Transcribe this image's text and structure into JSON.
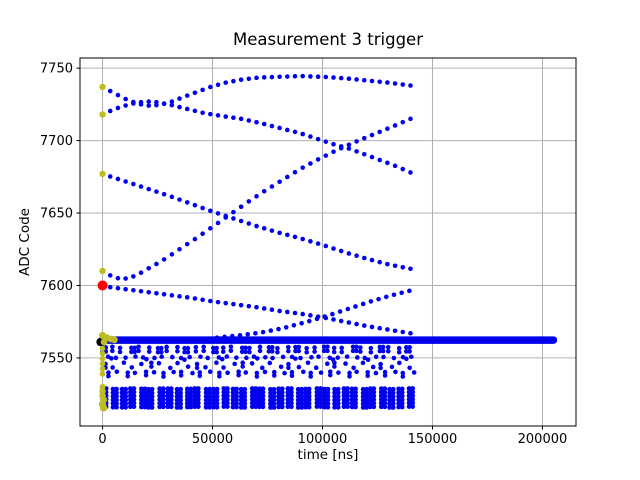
{
  "chart_data": {
    "type": "scatter",
    "title": "Measurement 3 trigger",
    "xlabel": "time [ns]",
    "ylabel": "ADC Code",
    "xlim": [
      -10250,
      215250
    ],
    "ylim": [
      7503,
      7757
    ],
    "xticks": [
      0,
      50000,
      100000,
      150000,
      200000
    ],
    "yticks": [
      7550,
      7600,
      7650,
      7700,
      7750
    ],
    "grid": true,
    "legend": null,
    "colors": {
      "trace": "#0000ee",
      "start_marker": "#bcbd22",
      "trigger_marker": "#ff0000",
      "black_marker": "#000000",
      "grid": "#b0b0b0",
      "spine": "#000000",
      "background": "#ffffff"
    },
    "sample_step_ns": 3500,
    "trace_dot_radius_px": 2.3,
    "traces": [
      {
        "name": "sine-top-rising",
        "points": [
          [
            0,
            7737
          ],
          [
            5000,
            7733
          ],
          [
            10000,
            7729
          ],
          [
            15000,
            7726
          ],
          [
            20000,
            7724
          ],
          [
            25000,
            7724.5
          ],
          [
            30000,
            7726
          ],
          [
            35000,
            7729
          ],
          [
            42000,
            7733
          ],
          [
            49000,
            7737
          ],
          [
            56000,
            7740
          ],
          [
            63000,
            7742
          ],
          [
            71000,
            7743.5
          ],
          [
            80000,
            7744
          ],
          [
            90000,
            7744.5
          ],
          [
            100000,
            7744
          ],
          [
            110000,
            7743
          ],
          [
            120000,
            7741.5
          ],
          [
            130000,
            7740
          ],
          [
            140000,
            7738
          ]
        ]
      },
      {
        "name": "sine-top-falling",
        "points": [
          [
            0,
            7718
          ],
          [
            5000,
            7721.5
          ],
          [
            10000,
            7724
          ],
          [
            15000,
            7726
          ],
          [
            20000,
            7727
          ],
          [
            25000,
            7726.5
          ],
          [
            30000,
            7725
          ],
          [
            38000,
            7722
          ],
          [
            46000,
            7719
          ],
          [
            54000,
            7717
          ],
          [
            63000,
            7715
          ],
          [
            72000,
            7712
          ],
          [
            81000,
            7708.5
          ],
          [
            90000,
            7705
          ],
          [
            98000,
            7701
          ],
          [
            105000,
            7697.5
          ],
          [
            112000,
            7694.5
          ],
          [
            120000,
            7690
          ],
          [
            128000,
            7685.5
          ],
          [
            134000,
            7682
          ],
          [
            140000,
            7678
          ]
        ]
      },
      {
        "name": "sine-mid-falling",
        "points": [
          [
            0,
            7677
          ],
          [
            10000,
            7672
          ],
          [
            20000,
            7667
          ],
          [
            30000,
            7662
          ],
          [
            40000,
            7656.5
          ],
          [
            50000,
            7651
          ],
          [
            60000,
            7646
          ],
          [
            70000,
            7641
          ],
          [
            80000,
            7636.5
          ],
          [
            90000,
            7632.5
          ],
          [
            100000,
            7628
          ],
          [
            110000,
            7623
          ],
          [
            120000,
            7618.5
          ],
          [
            130000,
            7614.5
          ],
          [
            140000,
            7611.5
          ]
        ]
      },
      {
        "name": "sine-mid-rising",
        "points": [
          [
            0,
            7610
          ],
          [
            4000,
            7606.5
          ],
          [
            8000,
            7604.5
          ],
          [
            12000,
            7605
          ],
          [
            16000,
            7607.5
          ],
          [
            20000,
            7611
          ],
          [
            27000,
            7617
          ],
          [
            34000,
            7624
          ],
          [
            42000,
            7632
          ],
          [
            50000,
            7640.5
          ],
          [
            58000,
            7649
          ],
          [
            66000,
            7657.5
          ],
          [
            74000,
            7665.5
          ],
          [
            82000,
            7673
          ],
          [
            90000,
            7680.5
          ],
          [
            98000,
            7687
          ],
          [
            106000,
            7693
          ],
          [
            114000,
            7698.5
          ],
          [
            122000,
            7703.5
          ],
          [
            130000,
            7708.5
          ],
          [
            140000,
            7715
          ]
        ]
      },
      {
        "name": "slow-falling-to-band",
        "points": [
          [
            0,
            7599.5
          ],
          [
            10000,
            7597.5
          ],
          [
            20000,
            7595.5
          ],
          [
            30000,
            7593.5
          ],
          [
            40000,
            7591.5
          ],
          [
            50000,
            7589
          ],
          [
            60000,
            7587
          ],
          [
            70000,
            7585
          ],
          [
            80000,
            7582.5
          ],
          [
            90000,
            7580.5
          ],
          [
            100000,
            7578
          ],
          [
            110000,
            7575
          ],
          [
            120000,
            7572
          ],
          [
            130000,
            7569.5
          ],
          [
            140000,
            7567
          ]
        ]
      },
      {
        "name": "slow-rising-from-band",
        "points": [
          [
            52000,
            7564
          ],
          [
            62000,
            7565.5
          ],
          [
            72000,
            7567.5
          ],
          [
            82000,
            7570.5
          ],
          [
            92000,
            7574.5
          ],
          [
            102000,
            7579
          ],
          [
            112000,
            7584
          ],
          [
            122000,
            7589
          ],
          [
            131000,
            7593
          ],
          [
            140000,
            7596.5
          ]
        ]
      }
    ],
    "flat_band": {
      "y": 7562.3,
      "x_start": 0,
      "x_end": 205000,
      "thickness_px": 7.5
    },
    "bottom_rows": [
      {
        "style": "pair",
        "codes": [
          7557.2,
          7554.4
        ],
        "step": 4200,
        "phase": 0,
        "x_end": 142000
      },
      {
        "style": "single",
        "codes": [
          7550.4
        ],
        "step": 4200,
        "phase": 2100,
        "x_end": 142000
      },
      {
        "style": "mixed",
        "codes": [
          7546.2,
          7543.6
        ],
        "step": 4200,
        "phase": 900,
        "x_end": 142000
      },
      {
        "style": "sparse",
        "codes": [
          7540.0,
          7537.6
        ],
        "step": 4200,
        "phase": 2600,
        "x_end": 142000
      },
      {
        "style": "stack",
        "codes": [
          7528.6,
          7526.1,
          7523.6,
          7521.1,
          7518.6,
          7516.1
        ],
        "step": 4200,
        "phase": 400,
        "x_end": 142000,
        "sub_dx": 1600
      }
    ],
    "start_markers": [
      [
        0,
        7737,
        3.2
      ],
      [
        0,
        7718,
        3.2
      ],
      [
        0,
        7677,
        3.2
      ],
      [
        0,
        7610,
        3.2
      ],
      [
        0,
        7565.5,
        3.6
      ],
      [
        2000,
        7564,
        3.4
      ],
      [
        3800,
        7563,
        3.4
      ],
      [
        5400,
        7562.5,
        3.4
      ],
      [
        700,
        7561,
        3.4
      ],
      [
        0,
        7556.5,
        2.8
      ],
      [
        0,
        7553,
        2.8
      ],
      [
        0,
        7549.5,
        2.8
      ],
      [
        0,
        7546,
        2.8
      ],
      [
        0,
        7542.5,
        2.8
      ],
      [
        0,
        7539,
        2.8
      ],
      [
        0,
        7530,
        3.0
      ],
      [
        0,
        7527,
        3.3
      ],
      [
        0,
        7524,
        3.3
      ],
      [
        500,
        7521,
        3.5
      ],
      [
        0,
        7518,
        3.7
      ],
      [
        500,
        7515.5,
        3.7
      ]
    ],
    "black_markers": [
      [
        -900,
        7561,
        4.2
      ]
    ],
    "trigger_marker": [
      0,
      7600,
      5.0
    ]
  }
}
